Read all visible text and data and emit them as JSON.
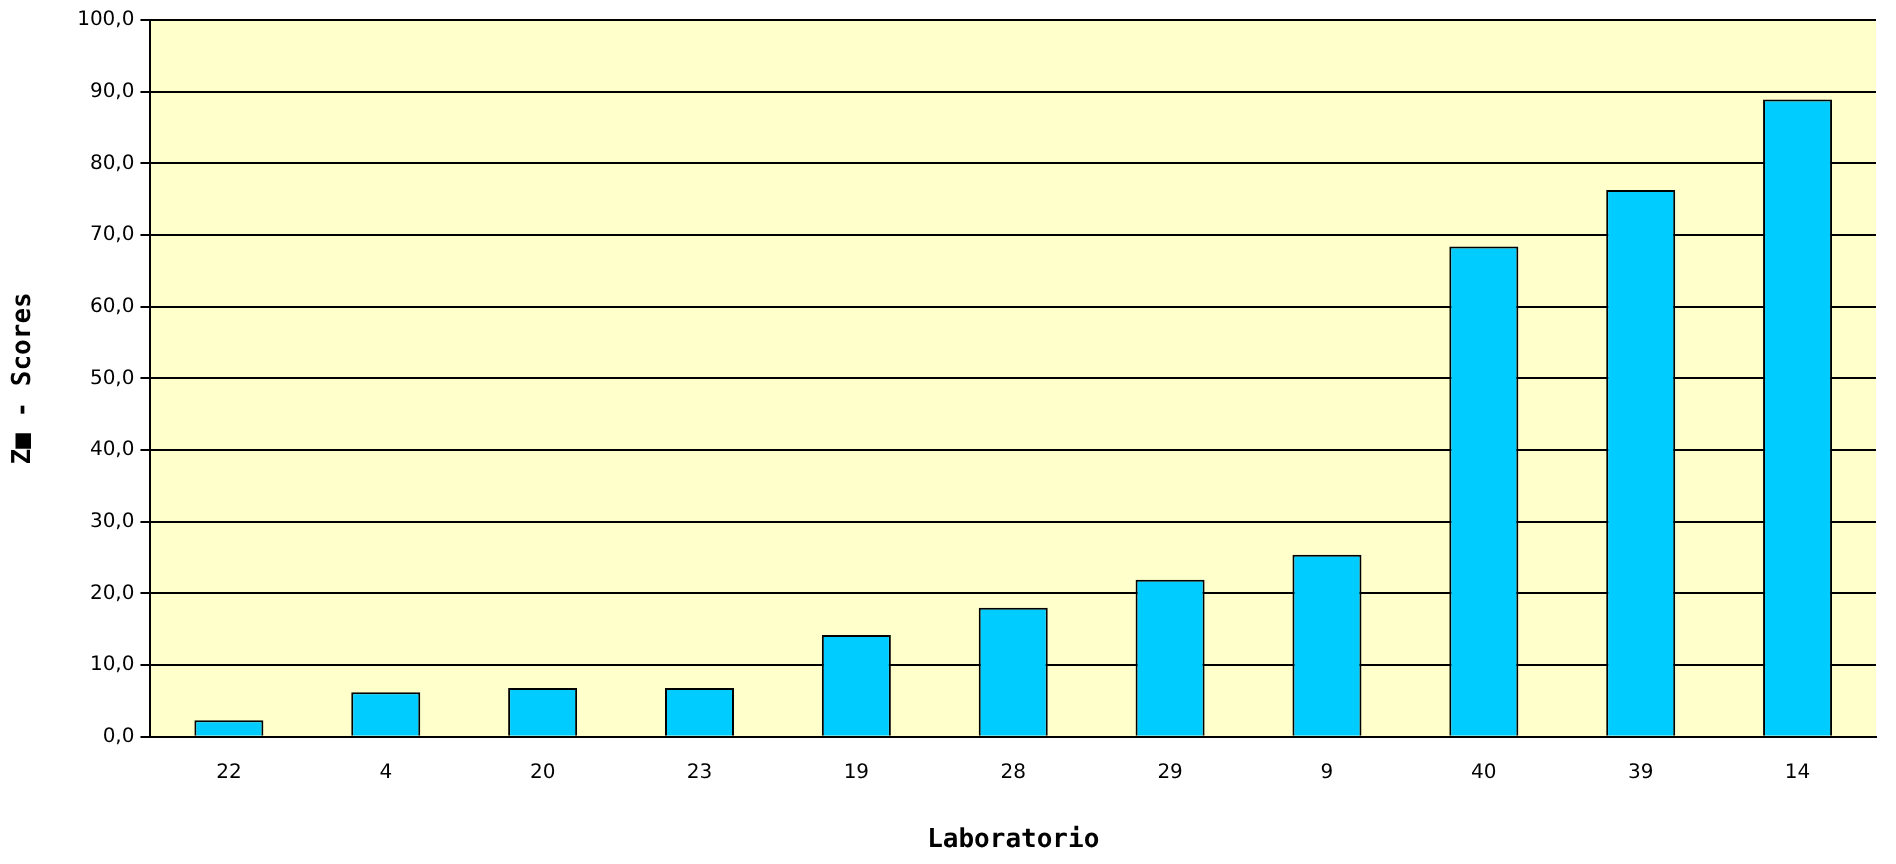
{
  "chart_data": {
    "type": "bar",
    "xlabel": "Laboratorio",
    "ylabel": "Z■ - Scores",
    "categories": [
      "22",
      "4",
      "20",
      "23",
      "19",
      "28",
      "29",
      "9",
      "40",
      "39",
      "14"
    ],
    "values": [
      2.3,
      6.2,
      6.8,
      6.8,
      14.2,
      18.0,
      21.9,
      25.4,
      68.4,
      76.3,
      88.9
    ],
    "color": "#00ccff",
    "ylim": [
      0,
      100
    ],
    "yticks": [
      {
        "value": 0,
        "label": "0,0"
      },
      {
        "value": 10,
        "label": "10,0"
      },
      {
        "value": 20,
        "label": "20,0"
      },
      {
        "value": 30,
        "label": "30,0"
      },
      {
        "value": 40,
        "label": "40,0"
      },
      {
        "value": 50,
        "label": "50,0"
      },
      {
        "value": 60,
        "label": "60,0"
      },
      {
        "value": 70,
        "label": "70,0"
      },
      {
        "value": 80,
        "label": "80,0"
      },
      {
        "value": 90,
        "label": "90,0"
      },
      {
        "value": 100,
        "label": "100,0"
      }
    ],
    "grid": "y",
    "legend": false
  }
}
